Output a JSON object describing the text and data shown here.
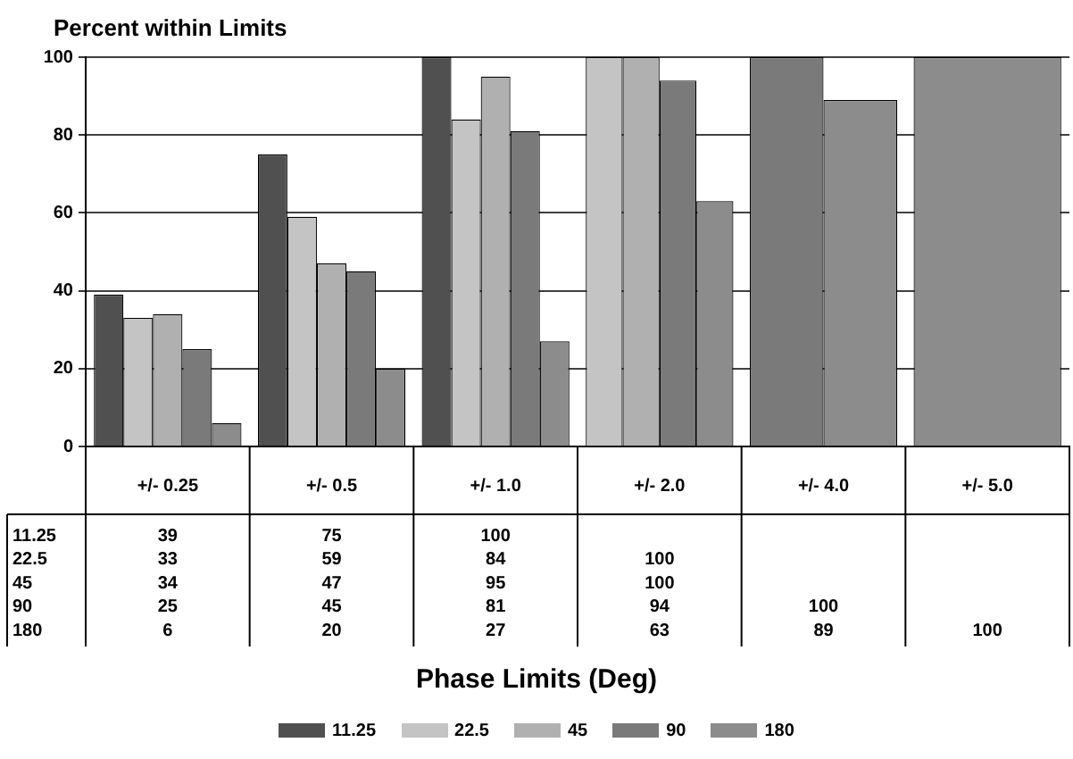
{
  "chart_data": {
    "type": "bar",
    "ylabel": "Percent within Limits",
    "annotations": [
      "Phase Limits (Deg)"
    ],
    "categories": [
      "+/- 0.25",
      "+/- 0.5",
      "+/- 1.0",
      "+/- 2.0",
      "+/- 4.0",
      "+/- 5.0"
    ],
    "series": [
      {
        "name": "11.25",
        "color": "#505050",
        "values": [
          39,
          75,
          100,
          null,
          null,
          null
        ]
      },
      {
        "name": "22.5",
        "color": "#c4c4c4",
        "values": [
          33,
          59,
          84,
          100,
          null,
          null
        ]
      },
      {
        "name": "45",
        "color": "#b0b0b0",
        "values": [
          34,
          47,
          95,
          100,
          null,
          null
        ]
      },
      {
        "name": "90",
        "color": "#7a7a7a",
        "values": [
          25,
          45,
          81,
          94,
          100,
          null
        ]
      },
      {
        "name": "180",
        "color": "#8c8c8c",
        "values": [
          6,
          20,
          27,
          63,
          89,
          100
        ]
      }
    ],
    "ylim": [
      0,
      100
    ],
    "yticks": [
      0,
      20,
      40,
      60,
      80,
      100
    ],
    "grid": "y",
    "legend": "bottom",
    "data_labels": true
  }
}
